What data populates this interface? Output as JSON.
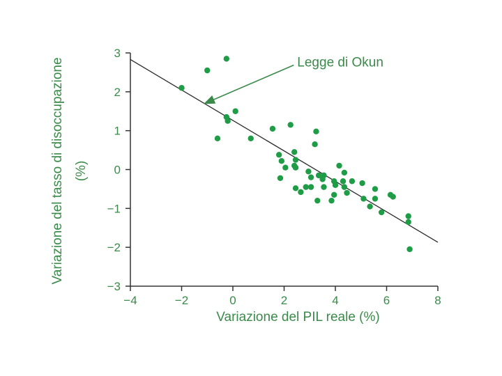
{
  "chart_data": {
    "type": "scatter",
    "xlabel": "Variazione del PIL reale (%)",
    "ylabel_line1": "Variazione del tasso di disoccupazione",
    "ylabel_line2": "(%)",
    "xlim": [
      -4,
      8
    ],
    "ylim": [
      -3,
      3
    ],
    "x_ticks": [
      -4,
      -2,
      0,
      2,
      4,
      6,
      8
    ],
    "x_tick_labels": [
      "−4",
      "−2",
      "0",
      "2",
      "4",
      "6",
      "8"
    ],
    "y_ticks": [
      3,
      2,
      1,
      0,
      -1,
      -2,
      -3
    ],
    "y_tick_labels": [
      "3",
      "2",
      "1",
      "0",
      "−1",
      "−2",
      "−3"
    ],
    "grid": false,
    "colors": {
      "points": "#1e9c46",
      "text": "#3a8a4a",
      "axis": "#333333",
      "line": "#2b2b2b"
    },
    "trend_line": {
      "x": [
        -4,
        8
      ],
      "y": [
        2.83,
        -1.87
      ]
    },
    "annotation": {
      "text": "Legge di Okun",
      "x": 3.6,
      "y": 2.4,
      "arrow_to": [
        -1.1,
        1.7
      ]
    },
    "points": [
      [
        -2.0,
        2.1
      ],
      [
        -1.0,
        2.55
      ],
      [
        -0.25,
        2.85
      ],
      [
        -0.6,
        0.8
      ],
      [
        -0.25,
        1.35
      ],
      [
        -0.2,
        1.25
      ],
      [
        0.1,
        1.5
      ],
      [
        0.7,
        0.8
      ],
      [
        1.55,
        1.05
      ],
      [
        2.25,
        1.15
      ],
      [
        3.25,
        0.98
      ],
      [
        3.2,
        0.65
      ],
      [
        1.8,
        0.38
      ],
      [
        1.9,
        0.22
      ],
      [
        2.05,
        0.05
      ],
      [
        2.4,
        0.45
      ],
      [
        2.45,
        0.25
      ],
      [
        2.4,
        0.1
      ],
      [
        2.45,
        0.05
      ],
      [
        1.85,
        -0.22
      ],
      [
        2.45,
        -0.48
      ],
      [
        2.65,
        -0.58
      ],
      [
        2.85,
        -0.45
      ],
      [
        3.05,
        -0.45
      ],
      [
        2.95,
        -0.05
      ],
      [
        3.05,
        -0.2
      ],
      [
        3.35,
        -0.15
      ],
      [
        3.55,
        -0.15
      ],
      [
        3.5,
        -0.25
      ],
      [
        3.55,
        -0.45
      ],
      [
        3.3,
        -0.8
      ],
      [
        3.85,
        -0.8
      ],
      [
        3.95,
        -0.3
      ],
      [
        4.0,
        -0.4
      ],
      [
        4.15,
        0.1
      ],
      [
        4.3,
        -0.3
      ],
      [
        4.35,
        -0.08
      ],
      [
        4.35,
        -0.45
      ],
      [
        4.45,
        -0.6
      ],
      [
        4.65,
        -0.3
      ],
      [
        3.95,
        -0.65
      ],
      [
        5.05,
        -0.35
      ],
      [
        5.1,
        -0.75
      ],
      [
        5.35,
        -0.95
      ],
      [
        5.55,
        -0.5
      ],
      [
        5.55,
        -0.75
      ],
      [
        5.8,
        -1.1
      ],
      [
        6.15,
        -0.65
      ],
      [
        6.25,
        -0.7
      ],
      [
        6.85,
        -1.2
      ],
      [
        6.85,
        -1.35
      ],
      [
        6.9,
        -2.05
      ]
    ]
  }
}
